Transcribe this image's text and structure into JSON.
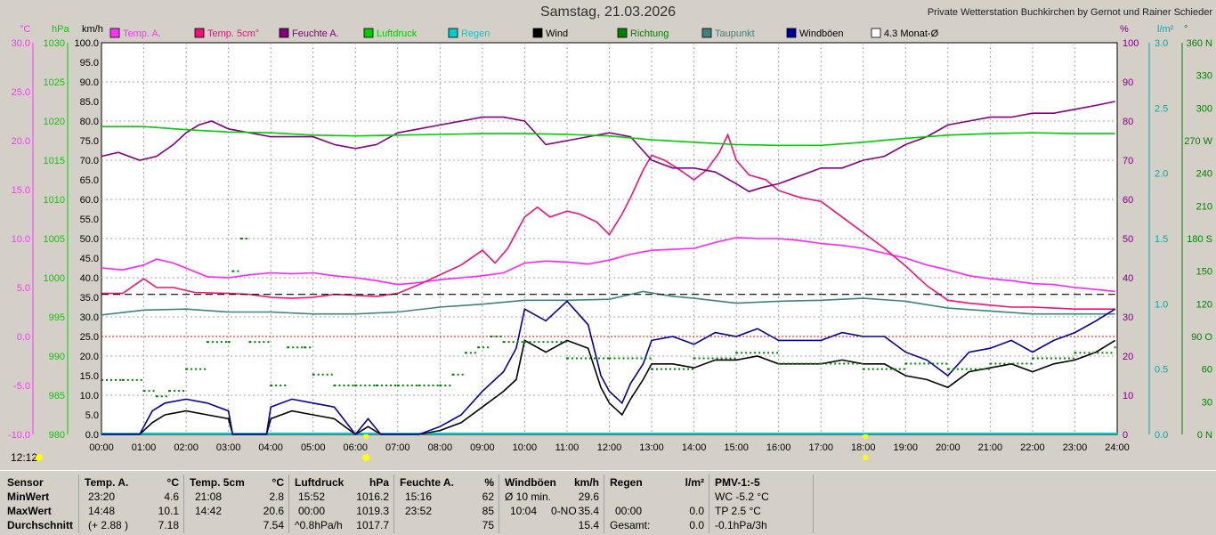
{
  "header": {
    "title": "Samstag, 21.03.2026",
    "station": "Private Wetterstation Buchkirchen by Gernot und Rainer Schieder"
  },
  "now_time": "12:12",
  "legend": [
    {
      "label": "Temp. A.",
      "color": "#ff33ff"
    },
    {
      "label": "Temp. 5cm°",
      "color": "#ee1177"
    },
    {
      "label": "Feuchte A.",
      "color": "#800080"
    },
    {
      "label": "Luftdruck",
      "color": "#00cc00"
    },
    {
      "label": "Regen",
      "color": "#00cccc"
    },
    {
      "label": "Wind",
      "color": "#000000"
    },
    {
      "label": "Richtung",
      "color": "#008000"
    },
    {
      "label": "Taupunkt",
      "color": "#408080"
    },
    {
      "label": "Windböen",
      "color": "#000099"
    },
    {
      "label": "4.3 Monat-Ø",
      "color": "#ffffff"
    }
  ],
  "axes": {
    "temp": {
      "unit": "°C",
      "color": "#ff33ff",
      "ticks": [
        "30.0",
        "25.0",
        "20.0",
        "15.0",
        "10.0",
        "5.0",
        "0.0",
        "-5.0",
        "-10.0"
      ]
    },
    "pressure": {
      "unit": "hPa",
      "color": "#00cc00",
      "ticks": [
        "1030",
        "1025",
        "1020",
        "1015",
        "1010",
        "1005",
        "1000",
        "995",
        "990",
        "985",
        "980"
      ]
    },
    "wind": {
      "unit": "km/h",
      "color": "#000000",
      "ticks": [
        "100.0",
        "95.0",
        "90.0",
        "85.0",
        "80.0",
        "75.0",
        "70.0",
        "65.0",
        "60.0",
        "55.0",
        "50.0",
        "45.0",
        "40.0",
        "35.0",
        "30.0",
        "25.0",
        "20.0",
        "15.0",
        "10.0",
        "5.0",
        "0.0"
      ]
    },
    "humidity": {
      "unit": "%",
      "color": "#800080",
      "ticks": [
        "100",
        "90",
        "80",
        "70",
        "60",
        "50",
        "40",
        "30",
        "20",
        "10",
        "0"
      ]
    },
    "rain": {
      "unit": "l/m²",
      "color": "#00aaaa",
      "ticks": [
        "3.0",
        "2.5",
        "2.0",
        "1.5",
        "1.0",
        "0.5",
        "0.0"
      ]
    },
    "direction": {
      "unit": "°",
      "color": "#008000",
      "ticks": [
        "360 N",
        "330",
        "300",
        "270 W",
        "240",
        "210",
        "180 S",
        "150",
        "120",
        "90 O",
        "60",
        "30",
        "0 N"
      ]
    },
    "x_ticks": [
      "00:00",
      "01:00",
      "02:00",
      "03:00",
      "04:00",
      "05:00",
      "06:00",
      "07:00",
      "08:00",
      "09:00",
      "10:00",
      "11:00",
      "12:00",
      "13:00",
      "14:00",
      "15:00",
      "16:00",
      "17:00",
      "18:00",
      "19:00",
      "20:00",
      "21:00",
      "22:00",
      "23:00",
      "24:00"
    ]
  },
  "chart_data": {
    "type": "line",
    "x_unit": "hour",
    "x_range": [
      0,
      24
    ],
    "series": [
      {
        "name": "Temp. A.",
        "axis": "temp",
        "color": "#ff22ff",
        "x": [
          0,
          0.5,
          1,
          1.3,
          1.7,
          2.5,
          3,
          3.5,
          4,
          4.5,
          5,
          5.5,
          6,
          6.5,
          7,
          7.5,
          8,
          8.5,
          9,
          9.5,
          10,
          10.5,
          11,
          11.5,
          12,
          12.5,
          13,
          13.5,
          14,
          14.5,
          15,
          15.5,
          16,
          16.5,
          17,
          17.5,
          18,
          18.5,
          19,
          19.5,
          20,
          20.5,
          21,
          21.5,
          22,
          22.5,
          23,
          23.5,
          23.95
        ],
        "y": [
          7.0,
          6.8,
          7.3,
          7.9,
          7.5,
          6.1,
          6.0,
          6.3,
          6.5,
          6.4,
          6.5,
          6.2,
          6.0,
          5.7,
          5.3,
          5.5,
          5.8,
          6.0,
          6.2,
          6.5,
          7.5,
          7.7,
          7.6,
          7.4,
          7.8,
          8.4,
          8.8,
          8.9,
          9.0,
          9.6,
          10.1,
          10.0,
          10.0,
          9.8,
          9.5,
          9.3,
          9.0,
          8.5,
          8.0,
          7.3,
          6.8,
          6.2,
          5.9,
          5.7,
          5.4,
          5.3,
          5.0,
          4.8,
          4.6
        ]
      },
      {
        "name": "Temp. 5cm°",
        "axis": "temp",
        "color": "#ee1177",
        "x": [
          0,
          0.5,
          0.8,
          1.0,
          1.3,
          1.7,
          2.2,
          3,
          3.5,
          4,
          4.5,
          5,
          5.5,
          6,
          6.5,
          7,
          7.5,
          8,
          8.5,
          9,
          9.3,
          9.6,
          10,
          10.3,
          10.6,
          11,
          11.3,
          11.7,
          12,
          12.3,
          12.5,
          12.8,
          13,
          13.3,
          13.6,
          14,
          14.3,
          14.6,
          14.8,
          15,
          15.3,
          15.7,
          16,
          16.5,
          17,
          17.5,
          18,
          18.5,
          19,
          19.5,
          20,
          20.5,
          21,
          21.5,
          22,
          22.5,
          23,
          23.5,
          23.95
        ],
        "y": [
          4.4,
          4.4,
          5.3,
          5.9,
          5.0,
          5.0,
          4.5,
          4.4,
          4.3,
          4.0,
          3.9,
          4.0,
          4.3,
          4.2,
          4.1,
          4.4,
          5.3,
          6.3,
          7.3,
          8.8,
          7.5,
          9.0,
          12.2,
          13.2,
          12.2,
          12.8,
          12.5,
          11.7,
          10.4,
          12.5,
          14.2,
          17.0,
          18.5,
          18.0,
          17.2,
          16.0,
          17.0,
          18.8,
          20.6,
          18.0,
          16.5,
          16.0,
          14.9,
          14.2,
          13.8,
          12.2,
          10.6,
          9.0,
          7.2,
          5.2,
          3.7,
          3.4,
          3.2,
          3.0,
          3.0,
          2.9,
          2.8,
          2.8,
          2.8
        ]
      },
      {
        "name": "Feuchte A.",
        "axis": "humidity",
        "color": "#800080",
        "x": [
          0,
          0.4,
          0.9,
          1.3,
          1.7,
          2,
          2.3,
          2.6,
          3,
          3.5,
          4,
          4.5,
          5,
          5.5,
          6,
          6.5,
          7,
          7.5,
          8,
          8.5,
          9,
          9.5,
          10,
          10.5,
          11,
          11.5,
          12,
          12.5,
          13,
          13.5,
          14,
          14.5,
          15,
          15.3,
          15.6,
          16,
          16.5,
          17,
          17.5,
          18,
          18.5,
          19,
          19.5,
          20,
          20.5,
          21,
          21.5,
          22,
          22.5,
          23,
          23.5,
          23.95
        ],
        "y": [
          71,
          72,
          70,
          71,
          74,
          77,
          79,
          80,
          78,
          77,
          76,
          76,
          76,
          74,
          73,
          74,
          77,
          78,
          79,
          80,
          81,
          81,
          80,
          74,
          75,
          76,
          77,
          76,
          70,
          68,
          68,
          67,
          64,
          62,
          63,
          64,
          66,
          68,
          68,
          70,
          71,
          74,
          76,
          79,
          80,
          81,
          81,
          82,
          82,
          83,
          84,
          85
        ]
      },
      {
        "name": "Luftdruck",
        "axis": "pressure",
        "color": "#00cc00",
        "x": [
          0,
          1,
          2,
          3,
          4,
          5,
          6,
          7,
          8,
          9,
          10,
          11,
          12,
          13,
          14,
          15,
          16,
          17,
          18,
          19,
          20,
          21,
          22,
          23,
          23.95
        ],
        "y": [
          1019.3,
          1019.3,
          1018.9,
          1018.6,
          1018.5,
          1018.2,
          1018.1,
          1018.2,
          1018.3,
          1018.4,
          1018.4,
          1018.3,
          1018.1,
          1017.6,
          1017.3,
          1017.0,
          1016.9,
          1016.9,
          1017.3,
          1017.8,
          1018.2,
          1018.4,
          1018.5,
          1018.4,
          1018.4
        ]
      },
      {
        "name": "Taupunkt",
        "axis": "temp",
        "color": "#408080",
        "x": [
          0,
          1,
          2,
          3,
          4,
          5,
          6,
          7,
          8,
          9,
          10,
          11,
          12,
          12.8,
          13.5,
          14,
          15,
          16,
          17,
          18,
          19,
          20,
          21,
          22,
          23,
          23.95
        ],
        "y": [
          2.2,
          2.7,
          2.8,
          2.5,
          2.5,
          2.3,
          2.3,
          2.5,
          3.0,
          3.3,
          3.7,
          3.7,
          3.8,
          4.6,
          4.1,
          3.9,
          3.4,
          3.6,
          3.7,
          3.9,
          3.6,
          2.9,
          2.6,
          2.3,
          2.3,
          2.3
        ]
      },
      {
        "name": "Wind",
        "axis": "wind",
        "color": "#000000",
        "x": [
          0,
          0.9,
          1.2,
          1.5,
          2,
          2.5,
          3,
          3.1,
          3.5,
          3.9,
          4,
          4.5,
          5,
          5.5,
          6,
          6.3,
          6.6,
          7,
          7.5,
          8,
          8.5,
          9,
          9.5,
          9.8,
          10,
          10.5,
          11,
          11.5,
          11.8,
          12,
          12.3,
          12.5,
          12.8,
          13,
          13.5,
          14,
          14.5,
          15,
          15.5,
          16,
          16.5,
          17,
          17.5,
          18,
          18.5,
          19,
          19.5,
          20,
          20.5,
          21,
          21.5,
          22,
          22.5,
          23,
          23.5,
          23.95
        ],
        "y": [
          0,
          0,
          3,
          5,
          6,
          5,
          4,
          0,
          0,
          0,
          4,
          6,
          5,
          4,
          0,
          2,
          0,
          0,
          0,
          1,
          3,
          7,
          11,
          14,
          24,
          21,
          24,
          22,
          12,
          8,
          5,
          9,
          14,
          18,
          18,
          17,
          19,
          19,
          20,
          18,
          18,
          18,
          19,
          18,
          18,
          15,
          14,
          12,
          16,
          17,
          18,
          16,
          18,
          19,
          21,
          24
        ]
      },
      {
        "name": "Windböen",
        "axis": "wind",
        "color": "#000099",
        "x": [
          0,
          0.9,
          1.2,
          1.5,
          2,
          2.5,
          3,
          3.1,
          3.5,
          3.9,
          4,
          4.5,
          5,
          5.5,
          6,
          6.3,
          6.6,
          7,
          7.5,
          8,
          8.5,
          9,
          9.5,
          9.8,
          10,
          10.5,
          11,
          11.5,
          11.8,
          12,
          12.3,
          12.5,
          12.8,
          13,
          13.5,
          14,
          14.5,
          15,
          15.5,
          16,
          16.5,
          17,
          17.5,
          18,
          18.5,
          19,
          19.5,
          20,
          20.5,
          21,
          21.5,
          22,
          22.5,
          23,
          23.5,
          23.95
        ],
        "y": [
          0,
          0,
          6,
          8,
          9,
          8,
          6,
          0,
          0,
          0,
          7,
          9,
          8,
          7,
          0,
          4,
          0,
          0,
          0,
          2,
          5,
          11,
          16,
          22,
          32,
          29,
          34,
          28,
          15,
          11,
          8,
          13,
          18,
          24,
          25,
          23,
          26,
          25,
          27,
          24,
          24,
          24,
          26,
          25,
          25,
          21,
          19,
          15,
          21,
          22,
          24,
          21,
          24,
          26,
          29,
          32
        ]
      },
      {
        "name": "Richtung",
        "axis": "direction",
        "color": "#008000",
        "x": [
          0,
          0.5,
          1,
          1.3,
          1.6,
          2,
          2.5,
          3,
          3.1,
          3.3,
          3.5,
          4,
          4.4,
          4.8,
          5,
          5.5,
          6,
          6.5,
          7,
          7.5,
          8,
          8.3,
          8.6,
          8.9,
          9.2,
          9.5,
          10,
          11,
          12,
          13,
          14,
          15,
          16,
          17,
          18,
          19,
          20,
          21,
          22,
          23,
          23.95
        ],
        "y": [
          50,
          50,
          40,
          35,
          40,
          60,
          85,
          85,
          150,
          180,
          85,
          45,
          80,
          80,
          55,
          45,
          45,
          45,
          45,
          45,
          45,
          55,
          75,
          80,
          90,
          85,
          85,
          70,
          70,
          60,
          70,
          75,
          65,
          65,
          60,
          65,
          60,
          65,
          70,
          75,
          80
        ]
      },
      {
        "name": "4.3 Monat-Ø",
        "axis": "temp",
        "color": "#000000",
        "x": [
          0,
          23.95
        ],
        "y": [
          4.3,
          4.3
        ]
      }
    ]
  },
  "stats": {
    "labels": {
      "sensor": "Sensor",
      "min": "MinWert",
      "max": "MaxWert",
      "avg": "Durchschnitt"
    },
    "temp_a": {
      "header": "Temp. A.",
      "unit": "°C",
      "min_time": "23:20",
      "min_val": "4.6",
      "max_time": "14:48",
      "max_val": "10.1",
      "avg_note": "(+ 2.88 )",
      "avg_val": "7.18"
    },
    "temp_5cm": {
      "header": "Temp. 5cm",
      "unit": "°C",
      "min_time": "21:08",
      "min_val": "2.8",
      "max_time": "14:42",
      "max_val": "20.6",
      "avg_val": "7.54"
    },
    "pressure": {
      "header": "Luftdruck",
      "unit": "hPa",
      "min_time": "15:52",
      "min_val": "1016.2",
      "max_time": "00:00",
      "max_val": "1019.3",
      "avg_note": "^0.8hPa/h",
      "avg_val": "1017.7"
    },
    "humidity": {
      "header": "Feuchte A.",
      "unit": "%",
      "min_time": "15:16",
      "min_val": "62",
      "max_time": "23:52",
      "max_val": "85",
      "avg_val": "75"
    },
    "gusts": {
      "header": "Windböen",
      "unit": "km/h",
      "min_label": "Ø 10 min.",
      "min_val": "29.6",
      "max_time": "10:04",
      "max_dir": "0-NO",
      "max_val": "35.4",
      "avg_val": "15.4"
    },
    "rain": {
      "header": "Regen",
      "unit": "l/m²",
      "max_time": "00:00",
      "max_val": "0.0",
      "avg_label": "Gesamt:",
      "avg_val": "0.0"
    },
    "pmv": {
      "header": "PMV-1:-5",
      "min_val": "WC -5.2 °C",
      "max_val": "TP 2.5 °C",
      "avg_val": "-0.1hPa/3h"
    }
  }
}
